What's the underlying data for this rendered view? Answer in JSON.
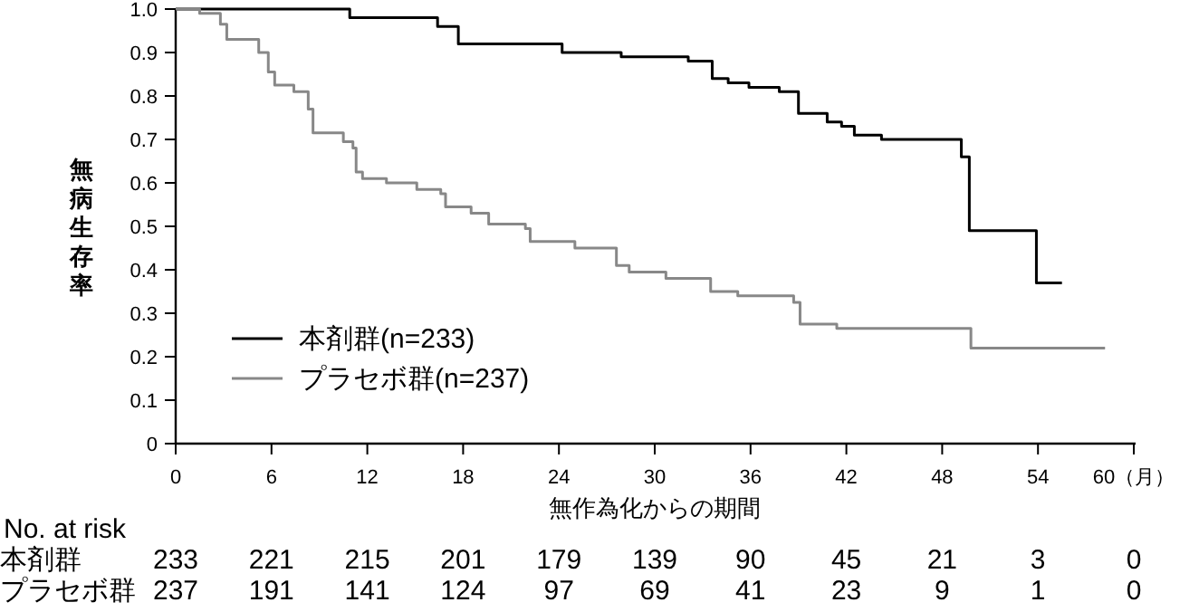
{
  "chart_data": {
    "type": "step",
    "xlabel": "無作為化からの期間",
    "ylabel": "無病生存率",
    "xlim": [
      0,
      60
    ],
    "xticks": [
      0,
      6,
      12,
      18,
      24,
      30,
      36,
      42,
      48,
      54,
      {
        "value": 60,
        "label": "60（月）"
      }
    ],
    "ylim": [
      0,
      1
    ],
    "yticks": [
      0,
      0.1,
      0.2,
      0.3,
      0.4,
      0.5,
      0.6,
      0.7,
      0.8,
      0.9,
      {
        "value": 1,
        "label": "1.0"
      }
    ],
    "grid": false,
    "legend": "bottom left",
    "marker": "none",
    "line_style": "solid",
    "series": [
      {
        "name": "本剤群(n=233)",
        "color": "#000000",
        "x": [
          0,
          10.9,
          16.4,
          17.7,
          24.2,
          27.9,
          32.1,
          33.6,
          34.6,
          35.9,
          37.8,
          39.0,
          40.8,
          41.7,
          42.5,
          44.2,
          49.2,
          49.7,
          53.9,
          55.5
        ],
        "values": [
          1,
          0.98,
          0.96,
          0.92,
          0.9,
          0.89,
          0.88,
          0.84,
          0.83,
          0.82,
          0.81,
          0.76,
          0.74,
          0.73,
          0.71,
          0.7,
          0.66,
          0.49,
          0.37,
          0.37
        ]
      },
      {
        "name": "プラセボ群(n=237)",
        "color": "#888888",
        "x": [
          0,
          1.5,
          2.8,
          3.2,
          5.2,
          5.8,
          6.2,
          7.4,
          8.3,
          8.6,
          10.5,
          11.1,
          11.3,
          11.7,
          13.2,
          15.1,
          16.6,
          16.9,
          18.5,
          19.6,
          21.9,
          22.2,
          25,
          27.6,
          28.4,
          30.7,
          33.5,
          35.2,
          38.7,
          39.1,
          41.4,
          49.8,
          58.2
        ],
        "values": [
          1,
          0.99,
          0.965,
          0.93,
          0.9,
          0.855,
          0.825,
          0.81,
          0.77,
          0.715,
          0.695,
          0.68,
          0.625,
          0.61,
          0.6,
          0.585,
          0.575,
          0.545,
          0.53,
          0.505,
          0.495,
          0.465,
          0.45,
          0.41,
          0.395,
          0.38,
          0.35,
          0.34,
          0.325,
          0.275,
          0.265,
          0.22,
          0.22
        ]
      }
    ],
    "annotations": [
      "No. at risk",
      "本剤群 233 221 215 201 179 139 90 45 21 3 0",
      "プラセボ群 237 191 141 124 97 69 41 23 9 1 0"
    ]
  }
}
